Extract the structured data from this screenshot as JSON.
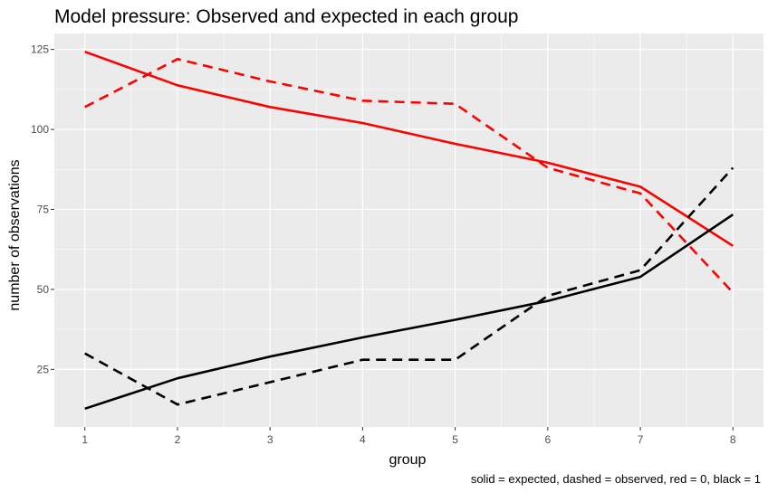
{
  "chart_data": {
    "type": "line",
    "title": "Model pressure: Observed and expected in each group",
    "xlabel": "group",
    "ylabel": "number of observations",
    "caption": "solid = expected, dashed = observed, red = 0, black = 1",
    "x": [
      1,
      2,
      3,
      4,
      5,
      6,
      7,
      8
    ],
    "xticks": [
      "1",
      "2",
      "3",
      "4",
      "5",
      "6",
      "7",
      "8"
    ],
    "yticks": [
      "25",
      "50",
      "75",
      "100",
      "125"
    ],
    "xlim": [
      0.67,
      8.33
    ],
    "ylim": [
      7,
      130
    ],
    "grid": true,
    "background": "#ebebeb",
    "series": [
      {
        "color": "#ff0000",
        "dash": "solid",
        "values": [
          124.3,
          113.8,
          107.0,
          102.0,
          95.5,
          89.6,
          82.1,
          63.6
        ]
      },
      {
        "color": "#ff0000",
        "dash": "dashed",
        "values": [
          107,
          122,
          115,
          109,
          108,
          88,
          80,
          49
        ]
      },
      {
        "color": "#000000",
        "dash": "solid",
        "values": [
          12.7,
          22.2,
          29.0,
          35.0,
          40.5,
          46.4,
          53.9,
          73.4
        ]
      },
      {
        "color": "#000000",
        "dash": "dashed",
        "values": [
          30,
          14,
          21,
          28,
          28,
          48,
          56,
          88
        ]
      }
    ]
  }
}
